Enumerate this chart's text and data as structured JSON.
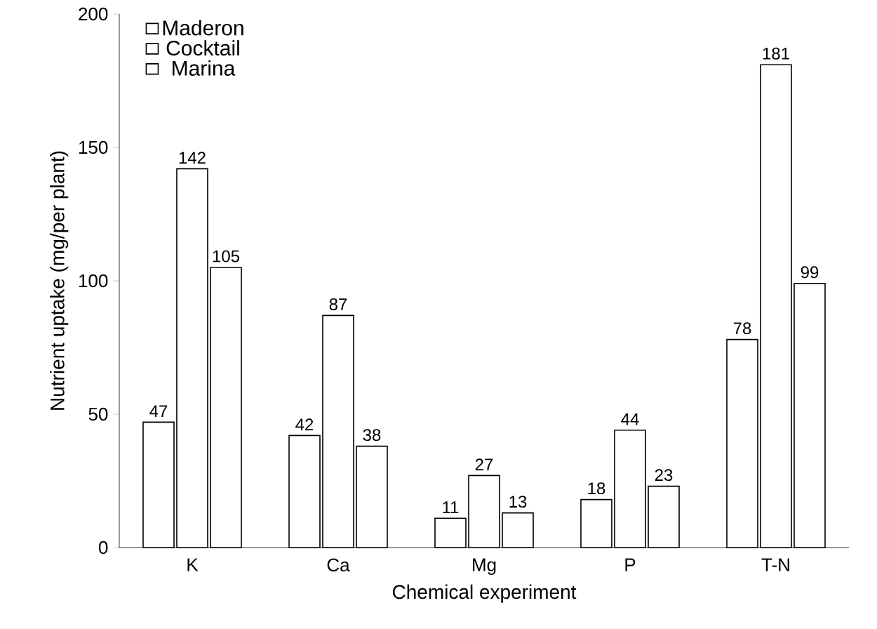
{
  "chart_data": {
    "type": "bar",
    "xlabel": "Chemical experiment",
    "ylabel": "Nutrient uptake (mg/per plant)",
    "categories": [
      "K",
      "Ca",
      "Mg",
      "P",
      "T-N"
    ],
    "series": [
      {
        "name": "Maderon",
        "color": "#ffffff",
        "values": [
          47,
          42,
          11,
          18,
          78
        ]
      },
      {
        "name": "Cocktail",
        "color": "#ffffff",
        "values": [
          142,
          87,
          27,
          44,
          181
        ]
      },
      {
        "name": "Marina",
        "color": "#ffffff",
        "values": [
          105,
          38,
          13,
          23,
          99
        ]
      }
    ],
    "ylim": [
      0,
      200
    ],
    "yticks": [
      0,
      50,
      100,
      150,
      200
    ],
    "data_labels": true,
    "legend": "top left"
  }
}
